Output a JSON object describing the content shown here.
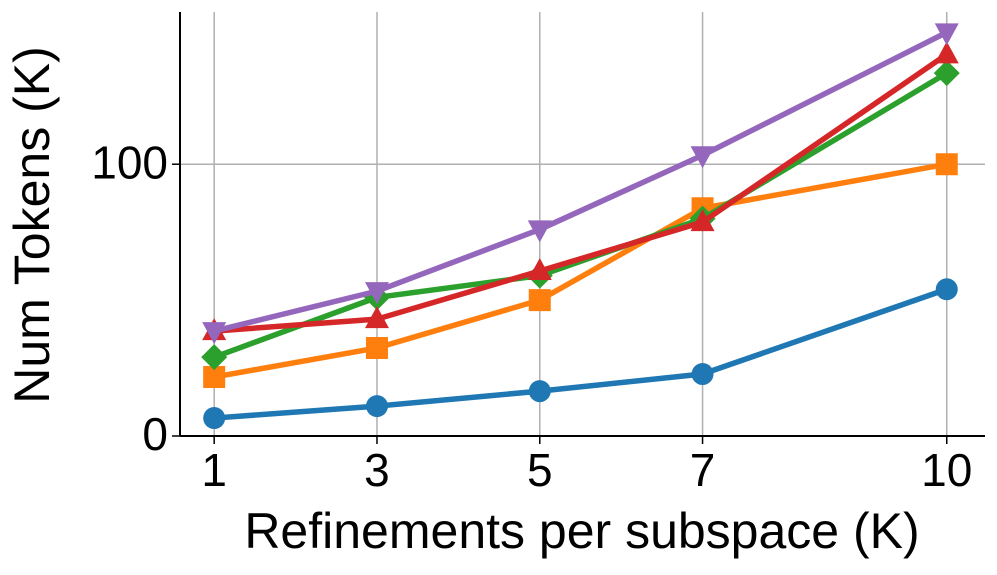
{
  "chart_data": {
    "type": "line",
    "x_label": "Refinements per subspace (K)",
    "y_label": "Num Tokens (K)",
    "x": [
      1,
      3,
      5,
      7,
      10
    ],
    "series": [
      {
        "color": "#1f77b4",
        "marker": "circle",
        "values": [
          6.6,
          11,
          16.5,
          22.8,
          54
        ]
      },
      {
        "color": "#ff7f0e",
        "marker": "square",
        "values": [
          21.7,
          32.4,
          50,
          83.8,
          100
        ]
      },
      {
        "color": "#2ca02c",
        "marker": "diamond",
        "values": [
          29,
          51,
          59,
          80,
          133.5
        ]
      },
      {
        "color": "#d62728",
        "marker": "triangle-up",
        "values": [
          38.6,
          43,
          60.7,
          78.7,
          140.4
        ]
      },
      {
        "color": "#9467bd",
        "marker": "triangle-down",
        "values": [
          38.6,
          53.3,
          76,
          103.3,
          148.5
        ]
      }
    ],
    "xlim": [
      0.58,
      10.47
    ],
    "xticks": [
      1,
      3,
      5,
      7,
      10
    ],
    "ylim": [
      0,
      156
    ],
    "yticks": [
      0,
      100
    ],
    "grid": true
  }
}
